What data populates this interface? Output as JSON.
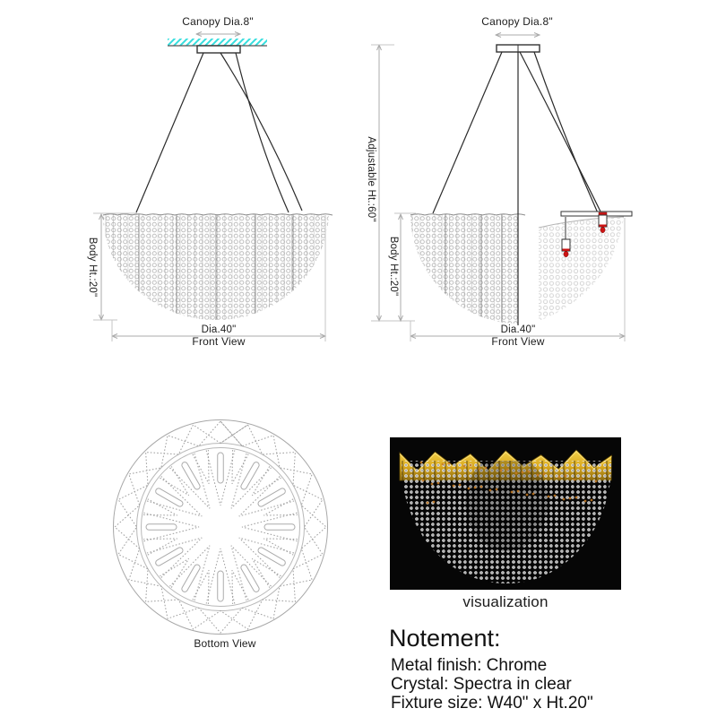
{
  "sheet": {
    "labels": {
      "canopy_dia": "Canopy Dia.8\"",
      "body_ht": "Body Ht.:20\"",
      "adjustable_ht": "Adjustable Ht.:60\"",
      "dia": "Dia.40\"",
      "front_view": "Front View",
      "bottom_view": "Bottom View",
      "visualization": "visualization"
    },
    "notes": {
      "title": "Notement:",
      "lines": [
        "Metal finish: Chrome",
        "Crystal: Spectra in clear",
        "Fixture size: W40\" x Ht.20\""
      ]
    },
    "colors": {
      "ceiling_hatch": "#35dede",
      "cable": "#2b2b2b",
      "dim_line": "#ababab",
      "tick_line": "#c4c4c4",
      "bead": "#b8b8b8",
      "bead_light": "#cfcfcf",
      "accent_red": "#cc1414",
      "gold": "#d9a81e",
      "gold_dark": "#8a6a10",
      "viz_background": "#060606"
    }
  }
}
